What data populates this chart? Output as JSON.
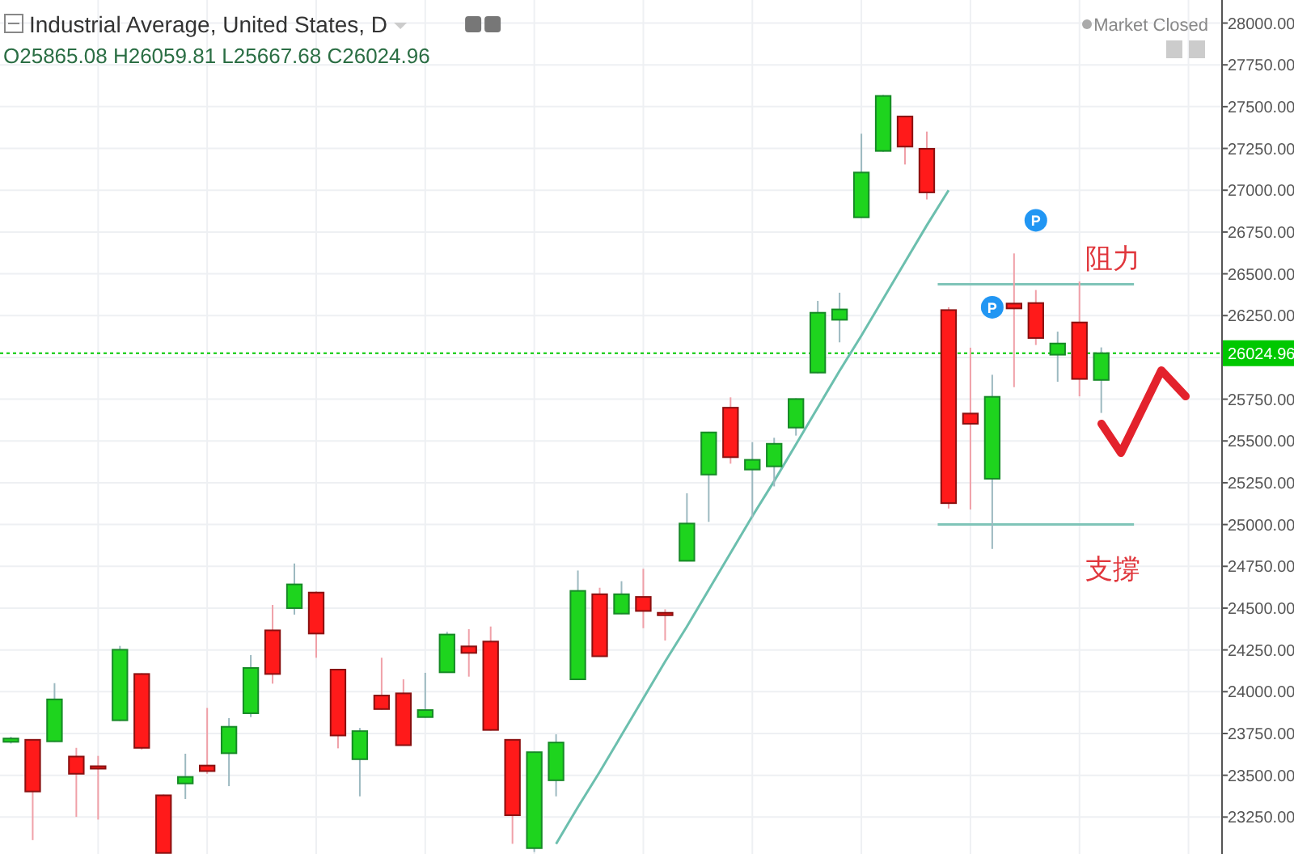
{
  "chart_data": {
    "type": "candlestick",
    "title": "Industrial Average, United States, D",
    "subtitle": "O25865.08 H26059.81 L25667.68 C26024.96",
    "annotations": [
      "Market Closed",
      "P",
      "P"
    ],
    "categories": [
      null,
      null,
      null,
      null,
      null,
      null,
      null,
      null,
      null,
      null,
      null,
      null,
      null,
      null,
      null,
      null,
      null,
      null,
      null,
      null,
      null,
      null,
      null,
      null,
      null,
      null,
      null,
      null,
      null,
      null,
      null,
      null,
      null,
      null,
      null,
      null,
      null,
      null,
      null,
      null,
      null,
      null,
      null,
      null,
      null,
      null,
      null,
      null,
      null,
      null,
      null,
      null,
      null,
      null,
      null,
      null
    ],
    "ohlc": [
      [
        23700,
        23730,
        23690,
        23720
      ],
      [
        23712,
        23715,
        23112,
        23403
      ],
      [
        23703,
        24051,
        23700,
        23954
      ],
      [
        23612,
        23664,
        23251,
        23509
      ],
      [
        23554,
        23616,
        23235,
        23541
      ],
      [
        23829,
        24274,
        23825,
        24251
      ],
      [
        24106,
        24110,
        23654,
        23664
      ],
      [
        23380,
        23385,
        23035,
        23035
      ],
      [
        23451,
        23629,
        23358,
        23490
      ],
      [
        23558,
        23903,
        23509,
        23525
      ],
      [
        23632,
        23842,
        23435,
        23790
      ],
      [
        23871,
        24219,
        23848,
        24142
      ],
      [
        24367,
        24519,
        24048,
        24106
      ],
      [
        24500,
        24767,
        24461,
        24642
      ],
      [
        24593,
        24600,
        24203,
        24348
      ],
      [
        24132,
        24135,
        23661,
        23738
      ],
      [
        23596,
        23783,
        23374,
        23764
      ],
      [
        23977,
        24203,
        23893,
        23896
      ],
      [
        23990,
        24074,
        23677,
        23680
      ],
      [
        23848,
        24113,
        23845,
        23890
      ],
      [
        24116,
        24358,
        24113,
        24342
      ],
      [
        24271,
        24374,
        24090,
        24232
      ],
      [
        24300,
        24390,
        23767,
        23771
      ],
      [
        23712,
        23715,
        23090,
        23261
      ],
      [
        23064,
        23641,
        23041,
        23638
      ],
      [
        23470,
        23745,
        23374,
        23696
      ],
      [
        24074,
        24725,
        24071,
        24603
      ],
      [
        24583,
        24622,
        24209,
        24212
      ],
      [
        24467,
        24661,
        24464,
        24583
      ],
      [
        24567,
        24735,
        24380,
        24483
      ],
      [
        24472,
        24493,
        24306,
        24470
      ],
      [
        24783,
        25187,
        24780,
        25006
      ],
      [
        25299,
        25555,
        25016,
        25551
      ],
      [
        25699,
        25761,
        25364,
        25403
      ],
      [
        25329,
        25493,
        25041,
        25387
      ],
      [
        25348,
        25519,
        25228,
        25483
      ],
      [
        25580,
        25755,
        25532,
        25751
      ],
      [
        25909,
        26338,
        25905,
        26267
      ],
      [
        26225,
        26387,
        26090,
        26287
      ],
      [
        26838,
        27338,
        26835,
        27106
      ],
      [
        27235,
        27570,
        27230,
        27564
      ],
      [
        27441,
        27445,
        27154,
        27261
      ],
      [
        27248,
        27351,
        26945,
        26987
      ],
      [
        26283,
        26300,
        25096,
        25128
      ],
      [
        25664,
        26058,
        25090,
        25603
      ],
      [
        25274,
        25896,
        24854,
        25764
      ],
      [
        26322,
        26622,
        25822,
        26293
      ],
      [
        26325,
        26403,
        26074,
        26116
      ],
      [
        26016,
        26154,
        25854,
        26083
      ],
      [
        26209,
        26454,
        25767,
        25871
      ],
      [
        25865.08,
        26059.81,
        25667.68,
        26024.96
      ],
      null,
      null,
      null,
      null,
      null
    ],
    "colors": [
      "#1ed41e",
      "#ff1a1a",
      "#1ed41e",
      "#ff1a1a",
      "#ff1a1a",
      "#1ed41e",
      "#ff1a1a",
      "#ff1a1a",
      "#1ed41e",
      "#ff1a1a",
      "#1ed41e",
      "#1ed41e",
      "#ff1a1a",
      "#1ed41e",
      "#ff1a1a",
      "#ff1a1a",
      "#1ed41e",
      "#ff1a1a",
      "#ff1a1a",
      "#1ed41e",
      "#1ed41e",
      "#ff1a1a",
      "#ff1a1a",
      "#ff1a1a",
      "#1ed41e",
      "#1ed41e",
      "#1ed41e",
      "#ff1a1a",
      "#1ed41e",
      "#ff1a1a",
      "#ff1a1a",
      "#1ed41e",
      "#1ed41e",
      "#ff1a1a",
      "#1ed41e",
      "#1ed41e",
      "#1ed41e",
      "#1ed41e",
      "#1ed41e",
      "#1ed41e",
      "#1ed41e",
      "#ff1a1a",
      "#ff1a1a",
      "#ff1a1a",
      "#ff1a1a",
      "#1ed41e",
      "#ff1a1a",
      "#ff1a1a",
      "#1ed41e",
      "#ff1a1a",
      "#1ed41e",
      null,
      null,
      null,
      null,
      null
    ],
    "series": [
      {
        "type": "line",
        "color": "#6cbfae",
        "values": [
          null,
          null,
          null,
          null,
          null,
          null,
          null,
          null,
          null,
          null,
          null,
          null,
          null,
          null,
          null,
          null,
          null,
          null,
          null,
          null,
          null,
          null,
          null,
          null,
          null,
          23090,
          23310,
          23520,
          23740,
          23960,
          24180,
          24390,
          24610,
          24830,
          25050,
          25260,
          25480,
          25700,
          25920,
          26130,
          26350,
          26570,
          26790,
          27000,
          null,
          null,
          null,
          null,
          null,
          null,
          null,
          null,
          null,
          null,
          null,
          null
        ]
      }
    ],
    "ylim": [
      23029,
      28138
    ],
    "yticks": [
      {
        "value": 23250,
        "label": "23250.00"
      },
      {
        "value": 23500,
        "label": "23500.00"
      },
      {
        "value": 23750,
        "label": "23750.00"
      },
      {
        "value": 24000,
        "label": "24000.00"
      },
      {
        "value": 24250,
        "label": "24250.00"
      },
      {
        "value": 24500,
        "label": "24500.00"
      },
      {
        "value": 24750,
        "label": "24750.00"
      },
      {
        "value": 25000,
        "label": "25000.00"
      },
      {
        "value": 25250,
        "label": "25250.00"
      },
      {
        "value": 25500,
        "label": "25500.00"
      },
      {
        "value": 25750,
        "label": "25750.00"
      },
      {
        "value": 26000,
        "label": null
      },
      {
        "value": 26250,
        "label": "26250.00"
      },
      {
        "value": 26500,
        "label": "26500.00"
      },
      {
        "value": 26750,
        "label": "26750.00"
      },
      {
        "value": 27000,
        "label": "27000.00"
      },
      {
        "value": 27250,
        "label": "27250.00"
      },
      {
        "value": 27500,
        "label": "27500.00"
      },
      {
        "value": 27750,
        "label": "27750.00"
      },
      {
        "value": 28000,
        "label": "28000.00"
      }
    ],
    "ref_lines": [
      {
        "axis": "y",
        "value": 26024.96,
        "label": "26024.96",
        "color": "#00c800",
        "line_style": "dotted"
      },
      {
        "axis": "y",
        "value": 26438,
        "label": "阻力",
        "color": "#7fc4b8",
        "line_style": "solid"
      },
      {
        "axis": "y",
        "value": 25000,
        "label": "支撐",
        "color": "#7fc4b8",
        "line_style": "solid"
      }
    ],
    "grid": true,
    "tick_labels": "y"
  }
}
